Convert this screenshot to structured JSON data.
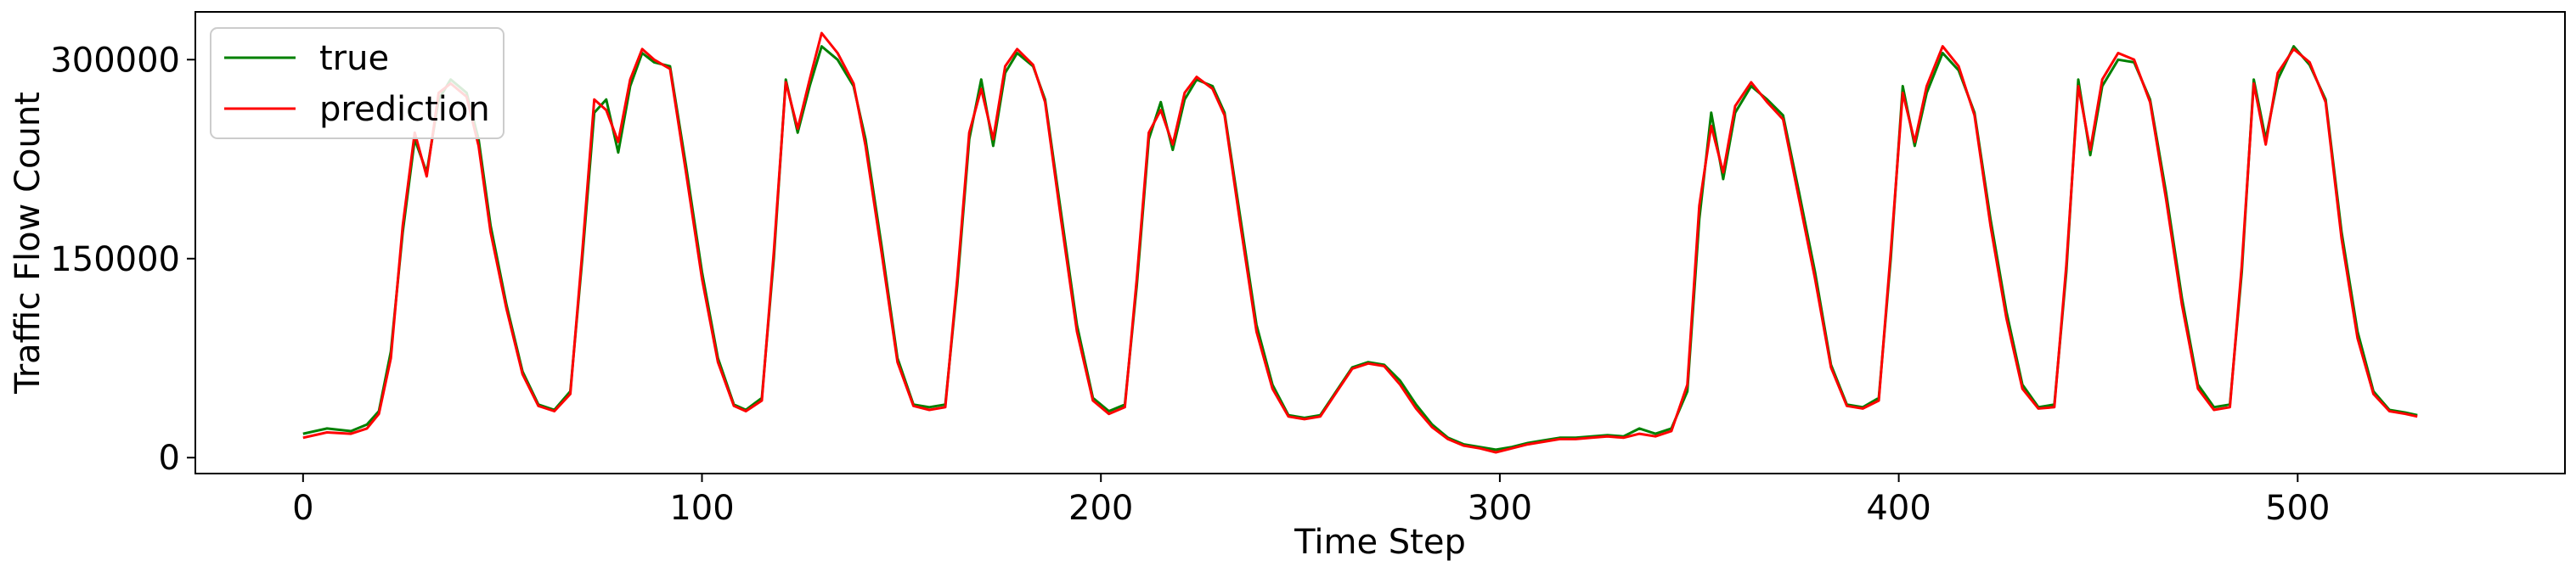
{
  "chart_data": {
    "type": "line",
    "title": "",
    "xlabel": "Time Step",
    "ylabel": "Traffic Flow Count",
    "xlim": [
      -27,
      567
    ],
    "ylim": [
      -12000,
      336000
    ],
    "xticks": [
      0,
      100,
      200,
      300,
      400,
      500
    ],
    "yticks": [
      0,
      150000,
      300000
    ],
    "grid": false,
    "legend": "upper-left",
    "series": [
      {
        "name": "true",
        "color": "#008000",
        "points": [
          [
            0,
            18000
          ],
          [
            6,
            22000
          ],
          [
            12,
            20000
          ],
          [
            16,
            25000
          ],
          [
            19,
            35000
          ],
          [
            22,
            80000
          ],
          [
            25,
            170000
          ],
          [
            28,
            240000
          ],
          [
            31,
            215000
          ],
          [
            34,
            270000
          ],
          [
            37,
            285000
          ],
          [
            41,
            275000
          ],
          [
            44,
            240000
          ],
          [
            47,
            175000
          ],
          [
            51,
            115000
          ],
          [
            55,
            65000
          ],
          [
            59,
            40000
          ],
          [
            63,
            36000
          ],
          [
            67,
            50000
          ],
          [
            70,
            150000
          ],
          [
            73,
            260000
          ],
          [
            76,
            270000
          ],
          [
            79,
            230000
          ],
          [
            82,
            280000
          ],
          [
            85,
            305000
          ],
          [
            88,
            298000
          ],
          [
            92,
            295000
          ],
          [
            96,
            220000
          ],
          [
            100,
            140000
          ],
          [
            104,
            75000
          ],
          [
            108,
            40000
          ],
          [
            111,
            36000
          ],
          [
            115,
            45000
          ],
          [
            118,
            150000
          ],
          [
            121,
            285000
          ],
          [
            124,
            245000
          ],
          [
            127,
            280000
          ],
          [
            130,
            310000
          ],
          [
            134,
            300000
          ],
          [
            138,
            280000
          ],
          [
            141,
            240000
          ],
          [
            145,
            160000
          ],
          [
            149,
            75000
          ],
          [
            153,
            40000
          ],
          [
            157,
            38000
          ],
          [
            161,
            40000
          ],
          [
            164,
            130000
          ],
          [
            167,
            240000
          ],
          [
            170,
            285000
          ],
          [
            173,
            235000
          ],
          [
            176,
            290000
          ],
          [
            179,
            305000
          ],
          [
            183,
            295000
          ],
          [
            186,
            270000
          ],
          [
            190,
            185000
          ],
          [
            194,
            100000
          ],
          [
            198,
            45000
          ],
          [
            202,
            35000
          ],
          [
            206,
            40000
          ],
          [
            209,
            130000
          ],
          [
            212,
            240000
          ],
          [
            215,
            268000
          ],
          [
            218,
            232000
          ],
          [
            221,
            270000
          ],
          [
            224,
            285000
          ],
          [
            228,
            280000
          ],
          [
            231,
            260000
          ],
          [
            235,
            180000
          ],
          [
            239,
            100000
          ],
          [
            243,
            55000
          ],
          [
            247,
            32000
          ],
          [
            251,
            30000
          ],
          [
            255,
            32000
          ],
          [
            259,
            50000
          ],
          [
            263,
            68000
          ],
          [
            267,
            72000
          ],
          [
            271,
            70000
          ],
          [
            275,
            58000
          ],
          [
            279,
            40000
          ],
          [
            283,
            25000
          ],
          [
            287,
            15000
          ],
          [
            291,
            10000
          ],
          [
            295,
            8000
          ],
          [
            299,
            6000
          ],
          [
            303,
            8000
          ],
          [
            307,
            11000
          ],
          [
            311,
            13000
          ],
          [
            315,
            15000
          ],
          [
            319,
            15000
          ],
          [
            323,
            16000
          ],
          [
            327,
            17000
          ],
          [
            331,
            16000
          ],
          [
            335,
            22000
          ],
          [
            339,
            18000
          ],
          [
            343,
            22000
          ],
          [
            347,
            50000
          ],
          [
            350,
            180000
          ],
          [
            353,
            260000
          ],
          [
            356,
            210000
          ],
          [
            359,
            260000
          ],
          [
            363,
            280000
          ],
          [
            367,
            270000
          ],
          [
            371,
            258000
          ],
          [
            375,
            200000
          ],
          [
            379,
            140000
          ],
          [
            383,
            70000
          ],
          [
            387,
            40000
          ],
          [
            391,
            38000
          ],
          [
            395,
            45000
          ],
          [
            398,
            150000
          ],
          [
            401,
            280000
          ],
          [
            404,
            235000
          ],
          [
            407,
            275000
          ],
          [
            411,
            305000
          ],
          [
            415,
            292000
          ],
          [
            419,
            260000
          ],
          [
            423,
            180000
          ],
          [
            427,
            110000
          ],
          [
            431,
            55000
          ],
          [
            435,
            38000
          ],
          [
            439,
            40000
          ],
          [
            442,
            140000
          ],
          [
            445,
            285000
          ],
          [
            448,
            228000
          ],
          [
            451,
            280000
          ],
          [
            455,
            300000
          ],
          [
            459,
            298000
          ],
          [
            463,
            270000
          ],
          [
            467,
            200000
          ],
          [
            471,
            120000
          ],
          [
            475,
            55000
          ],
          [
            479,
            38000
          ],
          [
            483,
            40000
          ],
          [
            486,
            140000
          ],
          [
            489,
            285000
          ],
          [
            492,
            240000
          ],
          [
            495,
            285000
          ],
          [
            499,
            310000
          ],
          [
            503,
            296000
          ],
          [
            507,
            270000
          ],
          [
            511,
            170000
          ],
          [
            515,
            95000
          ],
          [
            519,
            50000
          ],
          [
            523,
            36000
          ],
          [
            527,
            34000
          ],
          [
            530,
            32000
          ]
        ]
      },
      {
        "name": "prediction",
        "color": "#ff0000",
        "points": [
          [
            0,
            15000
          ],
          [
            6,
            19000
          ],
          [
            12,
            18000
          ],
          [
            16,
            22000
          ],
          [
            19,
            33000
          ],
          [
            22,
            75000
          ],
          [
            25,
            175000
          ],
          [
            28,
            245000
          ],
          [
            31,
            212000
          ],
          [
            34,
            275000
          ],
          [
            37,
            282000
          ],
          [
            41,
            272000
          ],
          [
            44,
            235000
          ],
          [
            47,
            170000
          ],
          [
            51,
            112000
          ],
          [
            55,
            63000
          ],
          [
            59,
            39000
          ],
          [
            63,
            35000
          ],
          [
            67,
            48000
          ],
          [
            70,
            155000
          ],
          [
            73,
            270000
          ],
          [
            76,
            262000
          ],
          [
            79,
            238000
          ],
          [
            82,
            285000
          ],
          [
            85,
            308000
          ],
          [
            88,
            300000
          ],
          [
            92,
            293000
          ],
          [
            96,
            215000
          ],
          [
            100,
            135000
          ],
          [
            104,
            72000
          ],
          [
            108,
            39000
          ],
          [
            111,
            35000
          ],
          [
            115,
            43000
          ],
          [
            118,
            155000
          ],
          [
            121,
            283000
          ],
          [
            124,
            248000
          ],
          [
            127,
            285000
          ],
          [
            130,
            320000
          ],
          [
            134,
            305000
          ],
          [
            138,
            282000
          ],
          [
            141,
            235000
          ],
          [
            145,
            155000
          ],
          [
            149,
            72000
          ],
          [
            153,
            39000
          ],
          [
            157,
            36000
          ],
          [
            161,
            38000
          ],
          [
            164,
            135000
          ],
          [
            167,
            245000
          ],
          [
            170,
            278000
          ],
          [
            173,
            240000
          ],
          [
            176,
            295000
          ],
          [
            179,
            308000
          ],
          [
            183,
            296000
          ],
          [
            186,
            268000
          ],
          [
            190,
            180000
          ],
          [
            194,
            95000
          ],
          [
            198,
            43000
          ],
          [
            202,
            33000
          ],
          [
            206,
            38000
          ],
          [
            209,
            135000
          ],
          [
            212,
            245000
          ],
          [
            215,
            262000
          ],
          [
            218,
            236000
          ],
          [
            221,
            275000
          ],
          [
            224,
            287000
          ],
          [
            228,
            278000
          ],
          [
            231,
            258000
          ],
          [
            235,
            175000
          ],
          [
            239,
            95000
          ],
          [
            243,
            52000
          ],
          [
            247,
            31000
          ],
          [
            251,
            29000
          ],
          [
            255,
            31000
          ],
          [
            259,
            49000
          ],
          [
            263,
            67000
          ],
          [
            267,
            71000
          ],
          [
            271,
            69000
          ],
          [
            275,
            55000
          ],
          [
            279,
            37000
          ],
          [
            283,
            23000
          ],
          [
            287,
            14000
          ],
          [
            291,
            9000
          ],
          [
            295,
            7000
          ],
          [
            299,
            4000
          ],
          [
            303,
            7000
          ],
          [
            307,
            10000
          ],
          [
            311,
            12000
          ],
          [
            315,
            14000
          ],
          [
            319,
            14000
          ],
          [
            323,
            15000
          ],
          [
            327,
            16000
          ],
          [
            331,
            15000
          ],
          [
            335,
            18000
          ],
          [
            339,
            16000
          ],
          [
            343,
            20000
          ],
          [
            347,
            55000
          ],
          [
            350,
            190000
          ],
          [
            353,
            250000
          ],
          [
            356,
            215000
          ],
          [
            359,
            265000
          ],
          [
            363,
            283000
          ],
          [
            367,
            268000
          ],
          [
            371,
            255000
          ],
          [
            375,
            195000
          ],
          [
            379,
            135000
          ],
          [
            383,
            68000
          ],
          [
            387,
            39000
          ],
          [
            391,
            37000
          ],
          [
            395,
            43000
          ],
          [
            398,
            155000
          ],
          [
            401,
            275000
          ],
          [
            404,
            238000
          ],
          [
            407,
            280000
          ],
          [
            411,
            310000
          ],
          [
            415,
            295000
          ],
          [
            419,
            258000
          ],
          [
            423,
            175000
          ],
          [
            427,
            105000
          ],
          [
            431,
            52000
          ],
          [
            435,
            37000
          ],
          [
            439,
            38000
          ],
          [
            442,
            145000
          ],
          [
            445,
            280000
          ],
          [
            448,
            232000
          ],
          [
            451,
            285000
          ],
          [
            455,
            305000
          ],
          [
            459,
            300000
          ],
          [
            463,
            268000
          ],
          [
            467,
            195000
          ],
          [
            471,
            115000
          ],
          [
            475,
            52000
          ],
          [
            479,
            36000
          ],
          [
            483,
            38000
          ],
          [
            486,
            145000
          ],
          [
            489,
            282000
          ],
          [
            492,
            236000
          ],
          [
            495,
            290000
          ],
          [
            499,
            308000
          ],
          [
            503,
            298000
          ],
          [
            507,
            268000
          ],
          [
            511,
            165000
          ],
          [
            515,
            90000
          ],
          [
            519,
            48000
          ],
          [
            523,
            35000
          ],
          [
            527,
            33000
          ],
          [
            530,
            31000
          ]
        ]
      }
    ]
  }
}
